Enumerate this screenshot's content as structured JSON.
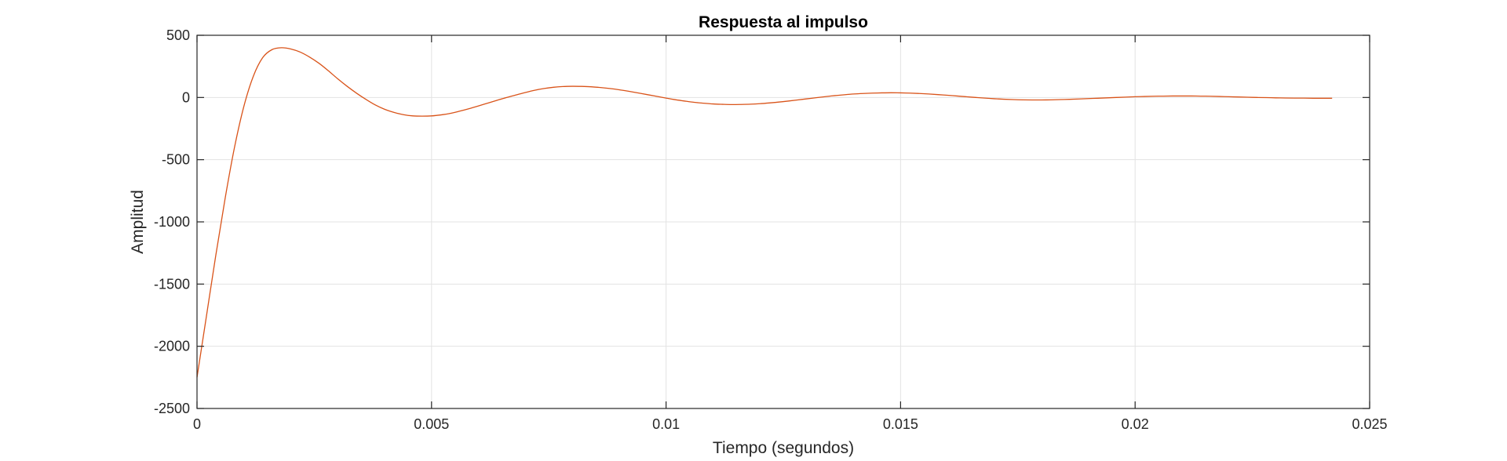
{
  "chart_data": {
    "type": "line",
    "title": "Respuesta al impulso",
    "xlabel": "Tiempo (segundos)",
    "ylabel": "Amplitud",
    "xlim": [
      0,
      0.025
    ],
    "ylim": [
      -2500,
      500
    ],
    "xticks": [
      0,
      0.005,
      0.01,
      0.015,
      0.02,
      0.025
    ],
    "xtick_labels": [
      "0",
      "0.005",
      "0.01",
      "0.015",
      "0.02",
      "0.025"
    ],
    "yticks": [
      500,
      0,
      -500,
      -1000,
      -1500,
      -2000,
      -2500
    ],
    "ytick_labels": [
      "500",
      "0",
      "-500",
      "-1000",
      "-1500",
      "-2000",
      "-2500"
    ],
    "grid": true,
    "box": true,
    "series": [
      {
        "color": "#D95319",
        "x": [
          0,
          0.0002,
          0.0004,
          0.0006,
          0.0008,
          0.001,
          0.0012,
          0.0014,
          0.0016,
          0.0018,
          0.002,
          0.0022,
          0.0024,
          0.0026,
          0.0028,
          0.003,
          0.0032,
          0.0034,
          0.0036,
          0.0038,
          0.004,
          0.0042,
          0.0044,
          0.0046,
          0.0048,
          0.005,
          0.0052,
          0.0054,
          0.0056,
          0.0058,
          0.006,
          0.0062,
          0.0064,
          0.0066,
          0.0068,
          0.007,
          0.0072,
          0.0074,
          0.0076,
          0.0078,
          0.008,
          0.0082,
          0.0084,
          0.0086,
          0.0088,
          0.009,
          0.0092,
          0.0094,
          0.0096,
          0.0098,
          0.01,
          0.0102,
          0.0104,
          0.0106,
          0.0108,
          0.011,
          0.0112,
          0.0114,
          0.0116,
          0.0118,
          0.012,
          0.0122,
          0.0124,
          0.0126,
          0.0128,
          0.013,
          0.0132,
          0.0134,
          0.0136,
          0.0138,
          0.014,
          0.0142,
          0.0144,
          0.0146,
          0.0148,
          0.015,
          0.0152,
          0.0154,
          0.0156,
          0.0158,
          0.016,
          0.0162,
          0.0164,
          0.0166,
          0.0168,
          0.017,
          0.0172,
          0.0174,
          0.0176,
          0.0178,
          0.018,
          0.0182,
          0.0184,
          0.0186,
          0.0188,
          0.019,
          0.0192,
          0.0194,
          0.0196,
          0.0198,
          0.02,
          0.0202,
          0.0204,
          0.0206,
          0.0208,
          0.021,
          0.0212,
          0.0214,
          0.0216,
          0.0218,
          0.022,
          0.0222,
          0.0224,
          0.0226,
          0.0228,
          0.023,
          0.0232,
          0.0234,
          0.0236,
          0.0238,
          0.024,
          0.0242
        ],
        "y": [
          -2250,
          -1760,
          -1270,
          -810,
          -400,
          -70,
          170,
          320,
          385,
          400,
          390,
          365,
          325,
          275,
          215,
          150,
          90,
          35,
          -15,
          -60,
          -95,
          -120,
          -138,
          -148,
          -150,
          -148,
          -140,
          -128,
          -110,
          -90,
          -68,
          -45,
          -22,
          0,
          20,
          40,
          58,
          72,
          82,
          88,
          90,
          89,
          86,
          80,
          72,
          62,
          50,
          37,
          23,
          9,
          -5,
          -18,
          -29,
          -39,
          -46,
          -52,
          -55,
          -57,
          -56,
          -54,
          -50,
          -44,
          -37,
          -29,
          -20,
          -11,
          -2,
          7,
          15,
          22,
          28,
          32,
          35,
          37,
          38,
          37,
          35,
          32,
          28,
          23,
          18,
          12,
          6,
          0,
          -5,
          -10,
          -14,
          -17,
          -19,
          -20,
          -20,
          -19,
          -17,
          -15,
          -12,
          -9,
          -6,
          -3,
          0,
          3,
          6,
          8,
          10,
          11,
          12,
          12,
          12,
          11,
          10,
          8,
          6,
          4,
          2,
          0,
          -1,
          -3,
          -4,
          -5,
          -5,
          -6,
          -6,
          -6
        ]
      }
    ]
  }
}
